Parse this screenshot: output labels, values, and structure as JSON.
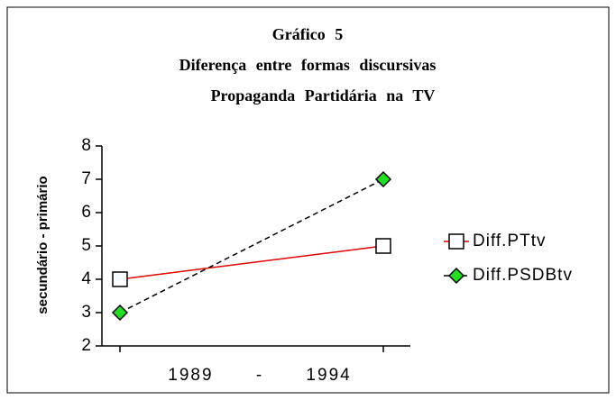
{
  "chart_data": {
    "type": "line",
    "title": "Gráfico 5",
    "subtitle": [
      "Diferença entre formas discursivas",
      "Propaganda Partidária na TV"
    ],
    "ylabel": "secundário - primário",
    "xlabel": "1989 - 1994",
    "categories": [
      null,
      null
    ],
    "series": [
      {
        "name": "Diff.PTtv",
        "color": "#e00000",
        "marker": "square",
        "dash": false,
        "values": [
          4,
          5
        ]
      },
      {
        "name": "Diff.PSDBtv",
        "color": "#000000",
        "marker": "diamond",
        "marker_color": "#22dd22",
        "dash": true,
        "values": [
          3,
          7
        ]
      }
    ],
    "ylim": [
      2,
      8
    ],
    "yticks": [
      2,
      3,
      4,
      5,
      6,
      7,
      8
    ],
    "legend": "right"
  }
}
